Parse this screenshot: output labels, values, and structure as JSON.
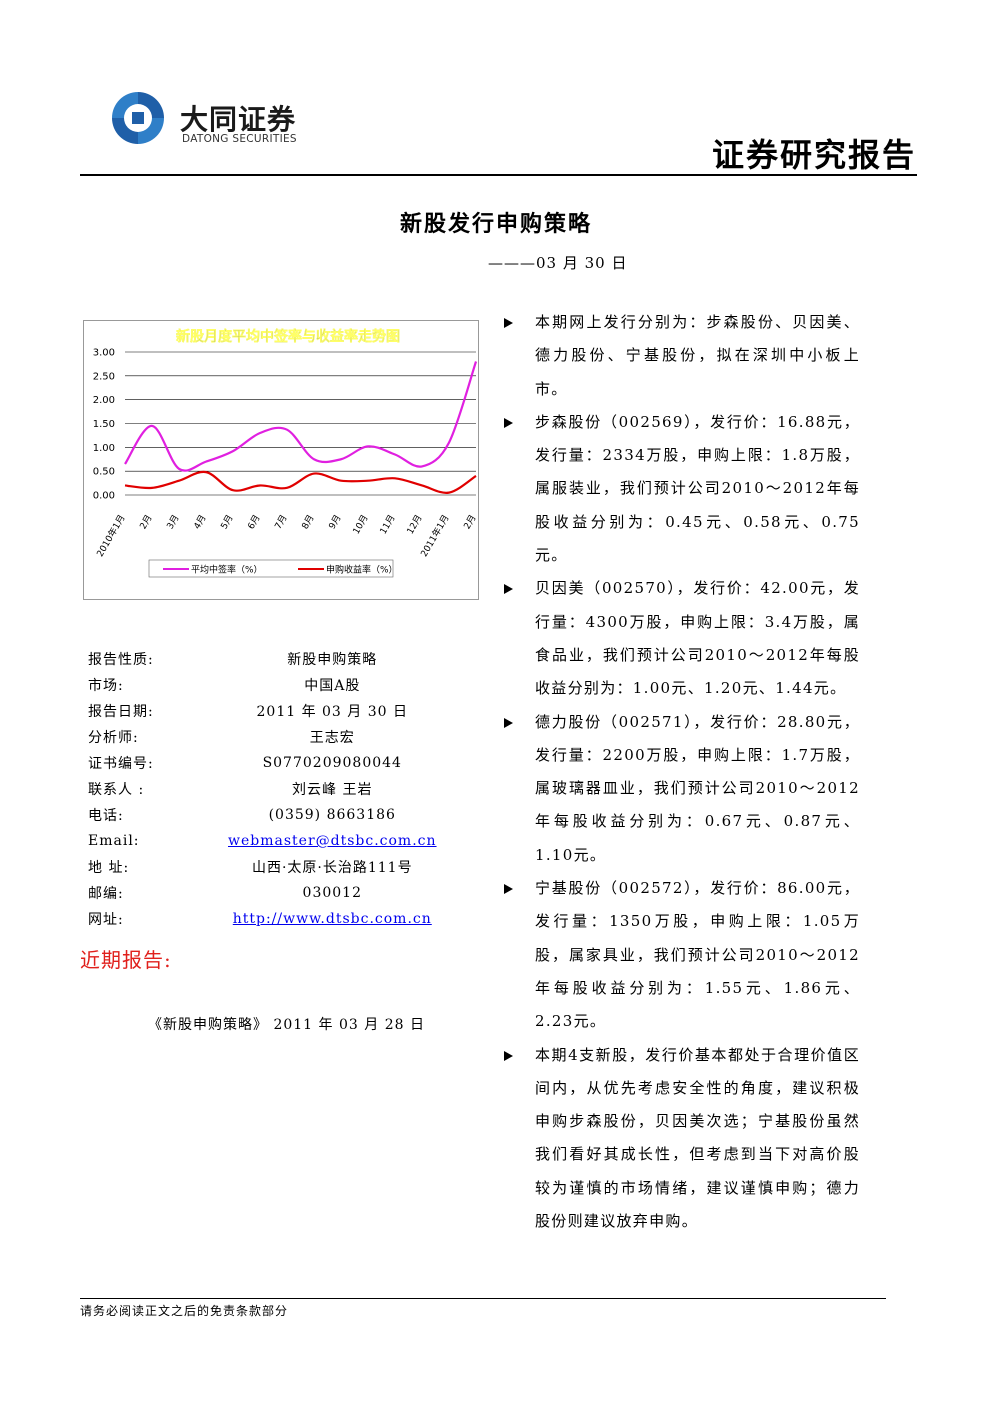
{
  "header": {
    "logo_cn": "大同证券",
    "logo_en": "DATONG SECURITIES",
    "report_type": "证券研究报告"
  },
  "title": "新股发行申购策略",
  "date": "———03 月 30 日",
  "chart_data": {
    "type": "line",
    "title": "新股月度平均中签率与收益率走势图",
    "categories": [
      "2010年1月",
      "2月",
      "3月",
      "4月",
      "5月",
      "6月",
      "7月",
      "8月",
      "9月",
      "10月",
      "11月",
      "12月",
      "2011年1月",
      "2月"
    ],
    "series": [
      {
        "name": "平均中签率（%）",
        "color": "#e020e0",
        "values": [
          0.65,
          1.45,
          0.55,
          0.7,
          0.92,
          1.3,
          1.37,
          0.75,
          0.75,
          1.02,
          0.85,
          0.6,
          1.1,
          2.8
        ]
      },
      {
        "name": "申购收益率（%）",
        "color": "#e00000",
        "values": [
          0.2,
          0.15,
          0.3,
          0.48,
          0.1,
          0.2,
          0.15,
          0.45,
          0.3,
          0.3,
          0.35,
          0.2,
          0.05,
          0.4
        ]
      }
    ],
    "ylim": [
      0,
      3
    ],
    "yticks": [
      {
        "value": 0,
        "label": "0.00"
      },
      {
        "value": 0.5,
        "label": "0.50"
      },
      {
        "value": 1,
        "label": "1.00"
      },
      {
        "value": 1.5,
        "label": "1.50"
      },
      {
        "value": 2,
        "label": "2.00"
      },
      {
        "value": 2.5,
        "label": "2.50"
      },
      {
        "value": 3,
        "label": "3.00"
      }
    ],
    "grid": true
  },
  "info": [
    [
      "报告性质:",
      "新股申购策略"
    ],
    [
      "市场:",
      "中国A股"
    ],
    [
      "报告日期:",
      "2011 年 03 月 30 日"
    ],
    [
      "分析师:",
      "王志宏"
    ],
    [
      "证书编号:",
      "S0770209080044"
    ],
    [
      "联系人 :",
      "刘云峰    王岩"
    ],
    [
      "电话:",
      "(0359) 8663186"
    ],
    [
      "Email:",
      "webmaster@dtsbc.com.cn"
    ],
    [
      "地 址:",
      "山西·太原·长治路111号"
    ],
    [
      "邮编:",
      "030012"
    ],
    [
      "网址:",
      "http://www.dtsbc.com.cn"
    ]
  ],
  "recent": {
    "title": "近期报告:",
    "items": [
      "《新股申购策略》 2011 年 03 月 28 日"
    ]
  },
  "bullets": [
    "本期网上发行分别为：步森股份、贝因美、德力股份、宁基股份，拟在深圳中小板上市。",
    "步森股份（002569），发行价：16.88元，发行量：2334万股，申购上限：1.8万股，属服装业，我们预计公司2010～2012年每股收益分别为：0.45元、0.58元、0.75元。",
    "贝因美（002570），发行价：42.00元，发行量：4300万股，申购上限：3.4万股，属食品业，我们预计公司2010～2012年每股收益分别为：1.00元、1.20元、1.44元。",
    "德力股份（002571），发行价：28.80元，发行量：2200万股，申购上限：1.7万股，属玻璃器皿业，我们预计公司2010～2012年每股收益分别为：0.67元、0.87元、1.10元。",
    "宁基股份（002572），发行价：86.00元，发行量：1350万股，申购上限：1.05万股，属家具业，我们预计公司2010～2012年每股收益分别为：1.55元、1.86元、2.23元。",
    "本期4支新股，发行价基本都处于合理价值区间内，从优先考虑安全性的角度，建议积极申购步森股份，贝因美次选；宁基股份虽然我们看好其成长性，但考虑到当下对高价股较为谨慎的市场情绪，建议谨慎申购；德力股份则建议放弃申购。"
  ],
  "footer": "请务必阅读正文之后的免责条款部分"
}
